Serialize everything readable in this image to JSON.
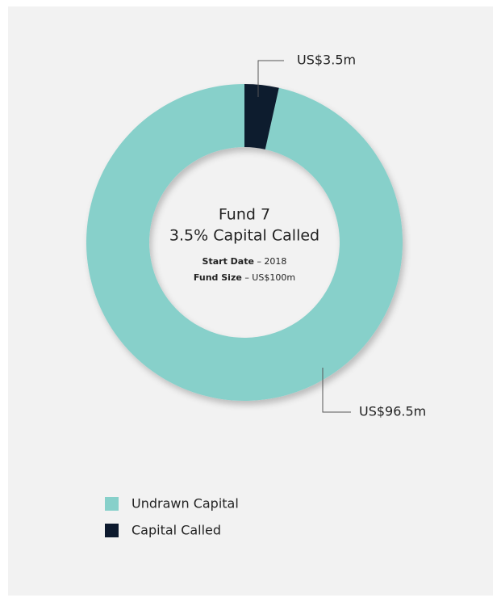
{
  "chart_data": {
    "type": "donut",
    "categories": [
      "Undrawn Capital",
      "Capital Called"
    ],
    "values": [
      96.5,
      3.5
    ],
    "value_labels": [
      "US$96.5m",
      "US$3.5m"
    ],
    "colors": [
      "#87d0ca",
      "#0d1a2e"
    ],
    "center_title": "Fund 7",
    "center_subtitle": "3.5% Capital Called",
    "details": [
      {
        "label": "Start Date",
        "text": "– 2018"
      },
      {
        "label": "Fund Size",
        "text": "– US$100m"
      }
    ]
  }
}
